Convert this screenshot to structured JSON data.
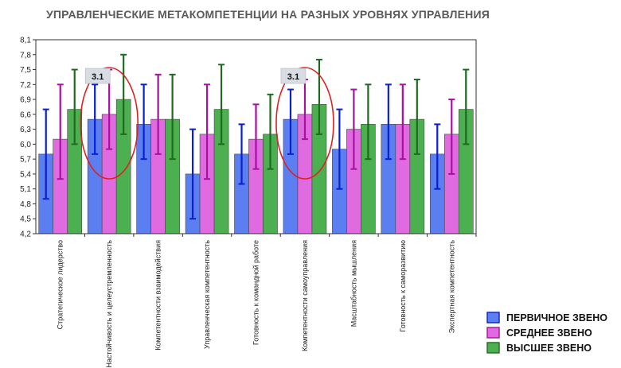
{
  "chart_data": {
    "type": "bar",
    "title": "УПРАВЛЕНЧЕСКИЕ МЕТАКОМПЕТЕНЦИИ НА РАЗНЫХ УРОВНЯХ УПРАВЛЕНИЯ",
    "xlabel": "",
    "ylabel": "",
    "ylim": [
      4.2,
      8.1
    ],
    "yticks": [
      "4,2",
      "4,5",
      "4,8",
      "5,1",
      "5,4",
      "5,7",
      "6,0",
      "6,3",
      "6,6",
      "6,9",
      "7,2",
      "7,5",
      "7,8",
      "8,1"
    ],
    "categories": [
      "Стратегическое лидерство",
      "Настойчивость и целеустремленность",
      "Компетентности взаимодействия",
      "Управленческая компетентность",
      "Готовность к командной работе",
      "Компетентности самоуправления",
      "Масштабность мышления",
      "Готовность к саморазвитию",
      "Экспертная компетентность"
    ],
    "series": [
      {
        "name": "ПЕРВИЧНОЕ ЗВЕНО",
        "color": "#5b7ff0",
        "error_color": "#0a1fd0",
        "values": [
          5.8,
          6.5,
          6.4,
          5.4,
          5.8,
          6.5,
          5.9,
          6.4,
          5.8
        ],
        "error_low": [
          4.9,
          5.8,
          5.7,
          4.5,
          5.2,
          5.8,
          5.1,
          5.7,
          5.1
        ],
        "error_high": [
          6.7,
          7.2,
          7.2,
          6.3,
          6.4,
          7.1,
          6.7,
          7.2,
          6.4
        ]
      },
      {
        "name": "СРЕДНЕЕ ЗВЕНО",
        "color": "#e06be0",
        "error_color": "#a8109e",
        "values": [
          6.1,
          6.6,
          6.5,
          6.2,
          6.1,
          6.6,
          6.3,
          6.4,
          6.2
        ],
        "error_low": [
          5.3,
          5.9,
          5.8,
          5.3,
          5.5,
          6.1,
          5.5,
          5.7,
          5.4
        ],
        "error_high": [
          7.2,
          7.5,
          7.4,
          7.2,
          6.8,
          7.3,
          7.1,
          7.2,
          6.9
        ]
      },
      {
        "name": "ВЫСШЕЕ ЗВЕНО",
        "color": "#4caf50",
        "error_color": "#1f6a1f",
        "values": [
          6.7,
          6.9,
          6.5,
          6.7,
          6.2,
          6.8,
          6.4,
          6.5,
          6.7
        ],
        "error_low": [
          6.0,
          6.2,
          5.7,
          6.0,
          5.5,
          6.2,
          5.7,
          5.8,
          6.0
        ],
        "error_high": [
          7.5,
          7.8,
          7.4,
          7.6,
          7.0,
          7.7,
          7.2,
          7.3,
          7.5
        ]
      }
    ],
    "annotations": [
      {
        "label": "3.1",
        "category_index": 1,
        "shape": "ellipse",
        "color": "#dd2222"
      },
      {
        "label": "3.1",
        "category_index": 5,
        "shape": "ellipse",
        "color": "#dd2222"
      }
    ],
    "legend": "bottom-right",
    "grid": false
  }
}
